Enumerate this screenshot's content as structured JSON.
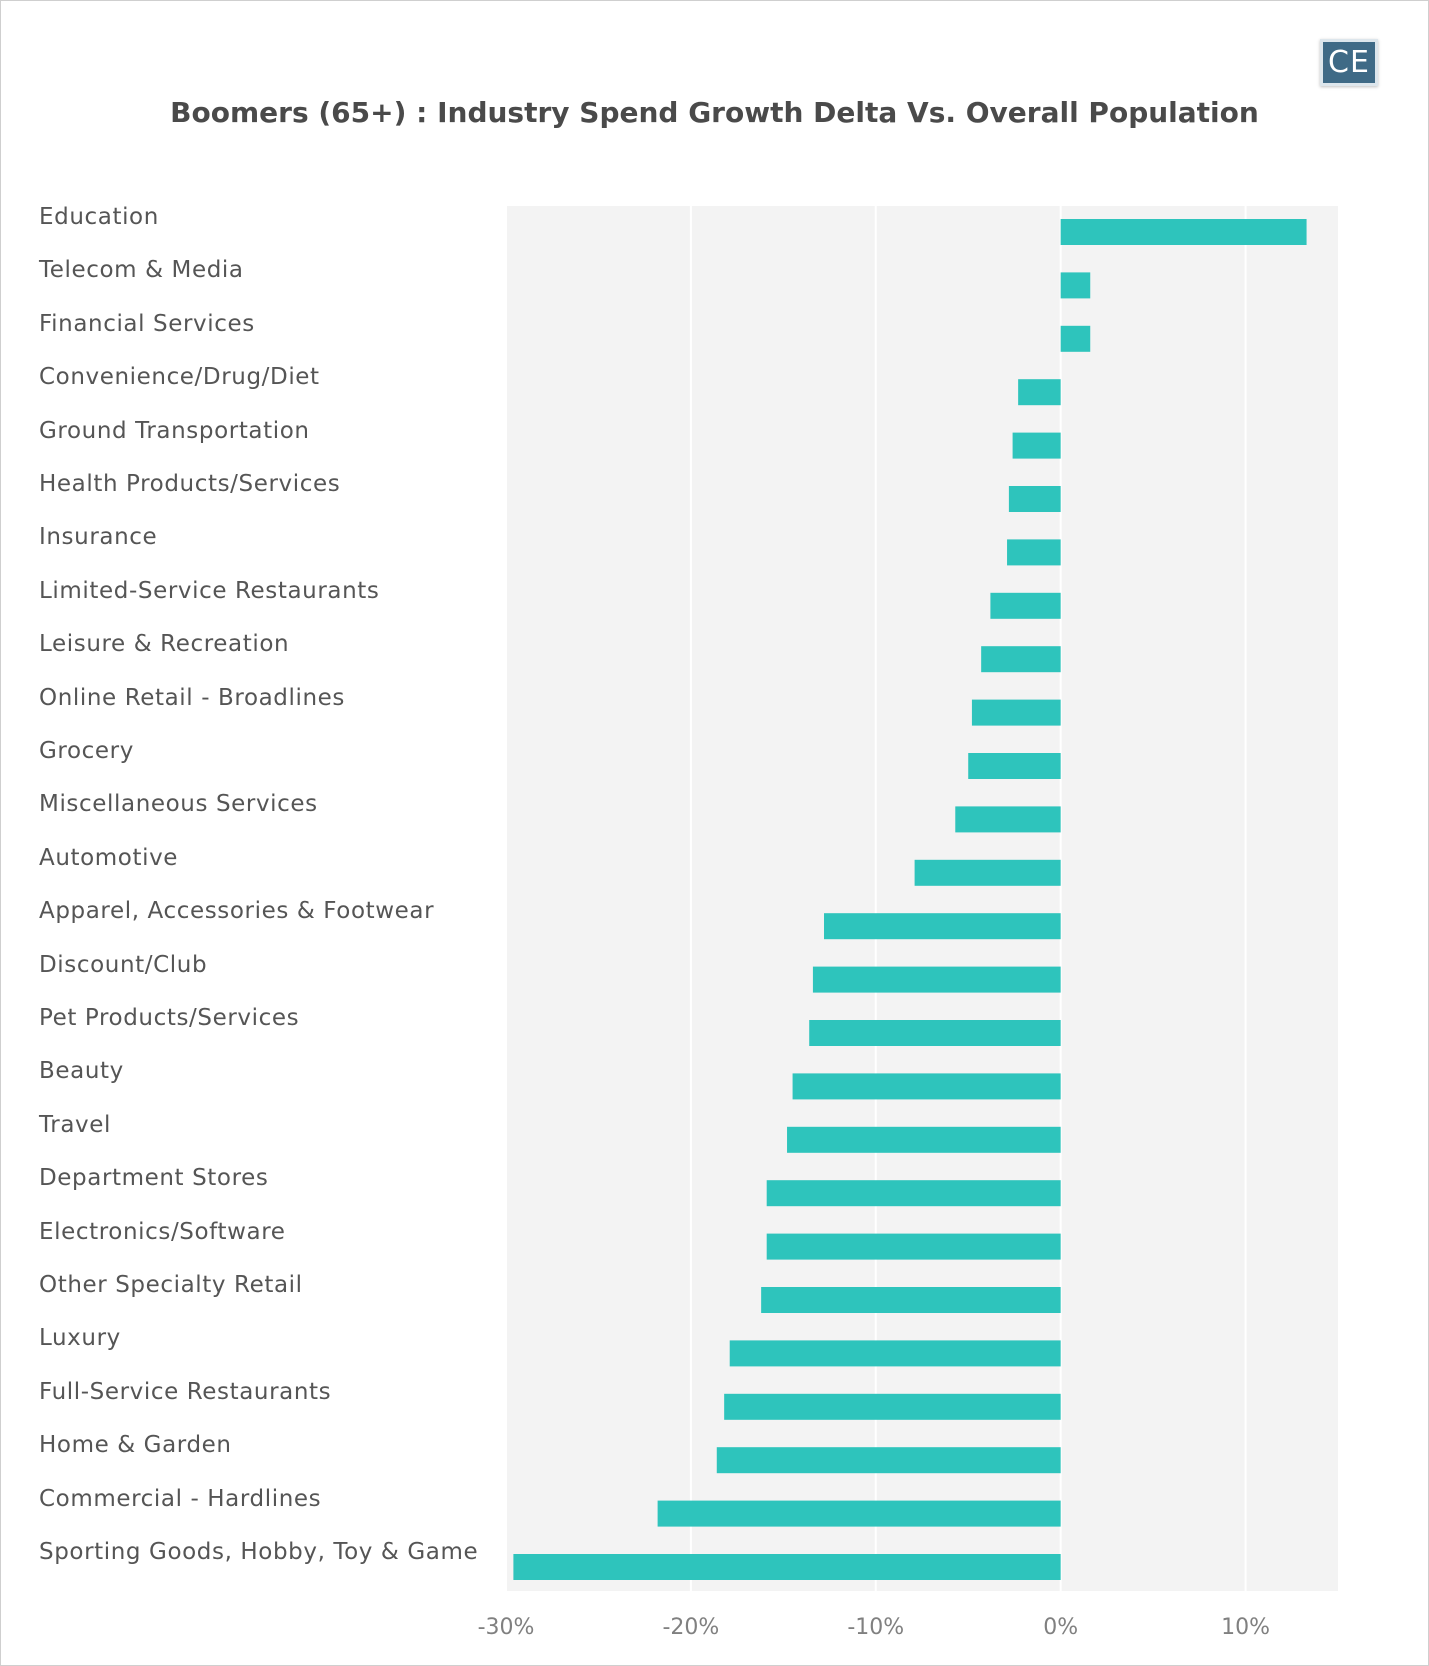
{
  "logo": {
    "text": "CE"
  },
  "chart_data": {
    "type": "bar",
    "orientation": "horizontal",
    "title": "Boomers (65+) : Industry Spend Growth Delta Vs. Overall Population",
    "xlabel": "",
    "ylabel": "",
    "xlim": [
      -30,
      15
    ],
    "xticks": [
      -30,
      -20,
      -10,
      0,
      10
    ],
    "xtick_labels": [
      "-30%",
      "-20%",
      "-10%",
      "0%",
      "10%"
    ],
    "grid": "vertical",
    "bar_color": "#2ec4bc",
    "plot_background": "#f3f3f3",
    "categories": [
      "Education",
      "Telecom & Media",
      "Financial Services",
      "Convenience/Drug/Diet",
      "Ground Transportation",
      "Health Products/Services",
      "Insurance",
      "Limited-Service Restaurants",
      "Leisure & Recreation",
      "Online Retail - Broadlines",
      "Grocery",
      "Miscellaneous Services",
      "Automotive",
      "Apparel, Accessories & Footwear",
      "Discount/Club",
      "Pet Products/Services",
      "Beauty",
      "Travel",
      "Department Stores",
      "Electronics/Software",
      "Other Specialty Retail",
      "Luxury",
      "Full-Service Restaurants",
      "Home & Garden",
      "Commercial - Hardlines",
      "Sporting Goods, Hobby, Toy & Game"
    ],
    "values": [
      13.3,
      1.6,
      1.6,
      -2.3,
      -2.6,
      -2.8,
      -2.9,
      -3.8,
      -4.3,
      -4.8,
      -5.0,
      -5.7,
      -7.9,
      -12.8,
      -13.4,
      -13.6,
      -14.5,
      -14.8,
      -15.9,
      -15.9,
      -16.2,
      -17.9,
      -18.2,
      -18.6,
      -21.8,
      -29.6
    ]
  }
}
